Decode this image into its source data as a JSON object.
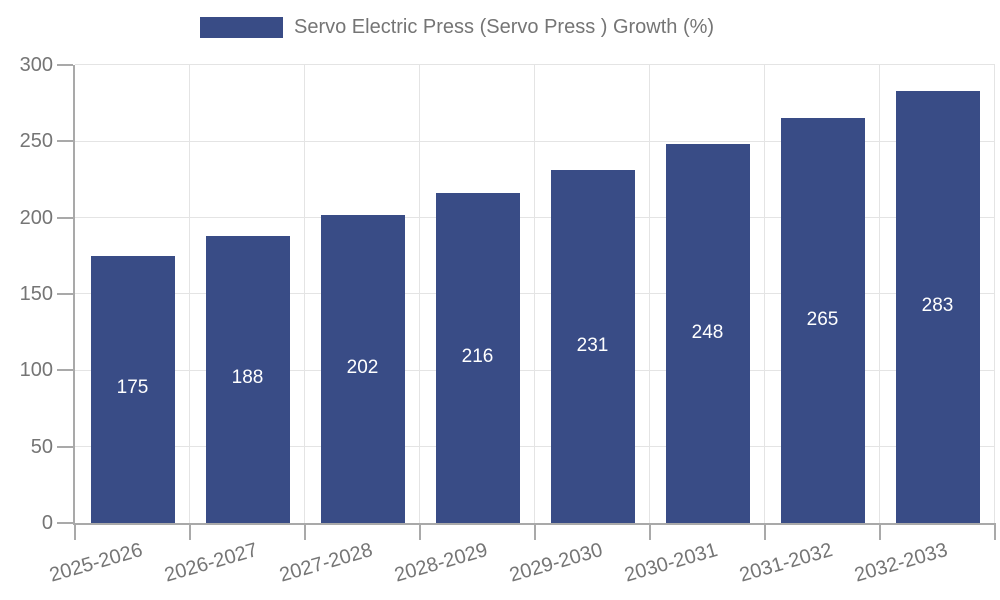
{
  "legend": {
    "label": "Servo Electric Press (Servo Press ) Growth (%)"
  },
  "chart_data": {
    "type": "bar",
    "title": "",
    "xlabel": "",
    "ylabel": "",
    "series_name": "Servo Electric Press (Servo Press ) Growth (%)",
    "categories": [
      "2025-2026",
      "2026-2027",
      "2027-2028",
      "2028-2029",
      "2029-2030",
      "2030-2031",
      "2031-2032",
      "2032-2033"
    ],
    "values": [
      175,
      188,
      202,
      216,
      231,
      248,
      265,
      283
    ],
    "ylim": [
      0,
      300
    ],
    "yticks": [
      0,
      50,
      100,
      150,
      200,
      250,
      300
    ],
    "grid": true,
    "legend_position": "top-center",
    "value_label_position": "center-of-bar",
    "colors": {
      "bar": "#394c86",
      "value_label": "#ffffff",
      "axis_text": "#757575",
      "grid_line": "#e4e4e4",
      "axis_line": "#a9a9a9",
      "background": "#ffffff"
    }
  }
}
